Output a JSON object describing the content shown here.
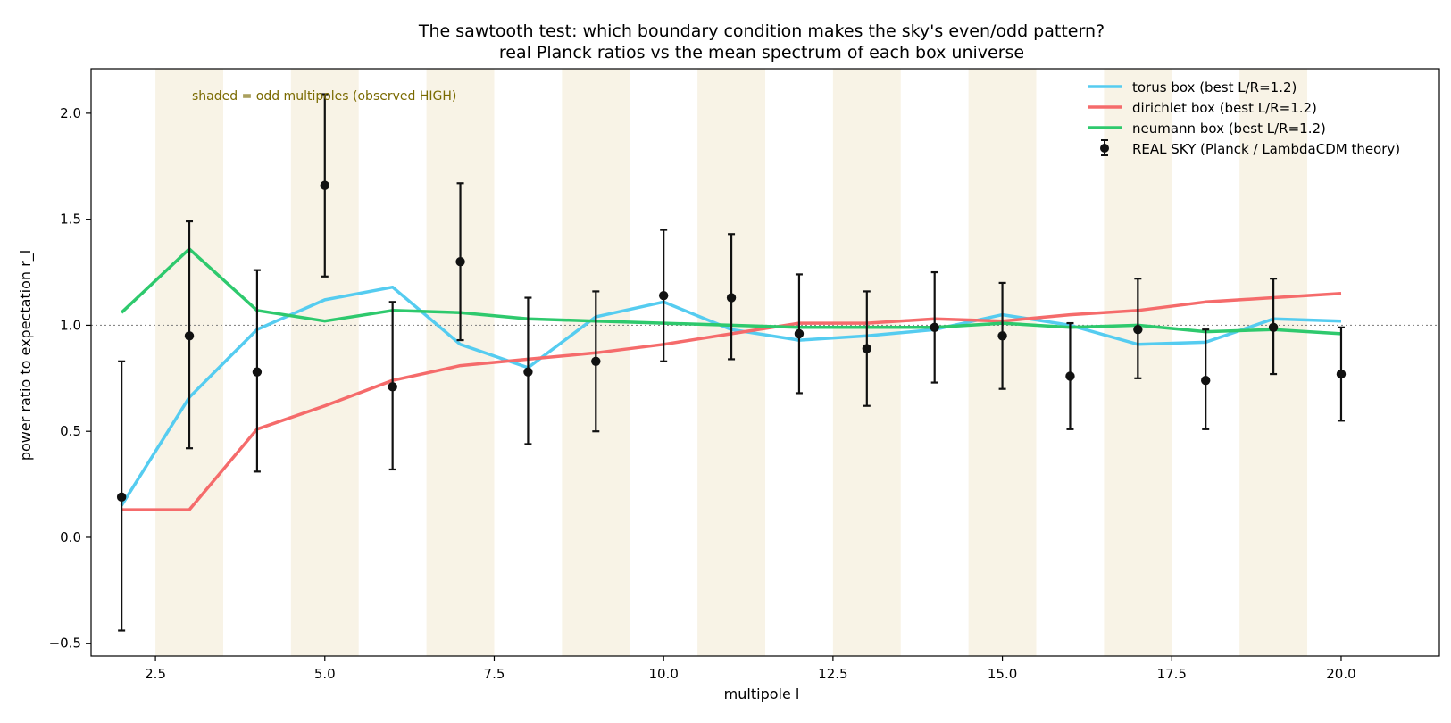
{
  "chart_data": {
    "type": "line",
    "title": "The sawtooth test: which boundary condition makes the sky's even/odd pattern?",
    "subtitle": "real Planck ratios vs the mean spectrum of each box universe",
    "xlabel": "multipole  l",
    "ylabel": "power ratio to expectation  r_l",
    "xlim": [
      1.55,
      21.45
    ],
    "ylim": [
      -0.56,
      2.21
    ],
    "xticks": [
      2.5,
      5.0,
      7.5,
      10.0,
      12.5,
      15.0,
      17.5,
      20.0
    ],
    "xtick_labels": [
      "2.5",
      "5.0",
      "7.5",
      "10.0",
      "12.5",
      "15.0",
      "17.5",
      "20.0"
    ],
    "yticks": [
      -0.5,
      0.0,
      0.5,
      1.0,
      1.5,
      2.0
    ],
    "ytick_labels": [
      "−0.5",
      "0.0",
      "0.5",
      "1.0",
      "1.5",
      "2.0"
    ],
    "reference_line": 1.0,
    "shaded_odd_multipoles": [
      3,
      5,
      7,
      9,
      11,
      13,
      15,
      17,
      19
    ],
    "annotation": "shaded = odd multipoles (observed HIGH)",
    "legend_position": "top-right",
    "grid": false,
    "x": [
      2,
      3,
      4,
      5,
      6,
      7,
      8,
      9,
      10,
      11,
      12,
      13,
      14,
      15,
      16,
      17,
      18,
      19,
      20
    ],
    "series": [
      {
        "name": "torus box  (best L/R=1.2)",
        "color": "#55ccf0",
        "values": [
          0.15,
          0.66,
          0.98,
          1.12,
          1.18,
          0.91,
          0.8,
          1.04,
          1.11,
          0.98,
          0.93,
          0.95,
          0.98,
          1.05,
          1.0,
          0.91,
          0.92,
          1.03,
          1.02
        ]
      },
      {
        "name": "dirichlet box  (best L/R=1.2)",
        "color": "#f56b6b",
        "values": [
          0.13,
          0.13,
          0.51,
          0.62,
          0.74,
          0.81,
          0.84,
          0.87,
          0.91,
          0.96,
          1.01,
          1.01,
          1.03,
          1.02,
          1.05,
          1.07,
          1.11,
          1.13,
          1.15
        ]
      },
      {
        "name": "neumann box  (best L/R=1.2)",
        "color": "#2ec96d",
        "values": [
          1.06,
          1.36,
          1.07,
          1.02,
          1.07,
          1.06,
          1.03,
          1.02,
          1.01,
          1.0,
          0.99,
          0.99,
          0.99,
          1.01,
          0.99,
          1.0,
          0.97,
          0.98,
          0.96
        ]
      }
    ],
    "observed": {
      "name": "REAL SKY (Planck / LambdaCDM theory)",
      "color": "#111111",
      "values": [
        0.19,
        0.95,
        0.78,
        1.66,
        0.71,
        1.3,
        0.78,
        0.83,
        1.14,
        1.13,
        0.96,
        0.89,
        0.99,
        0.95,
        0.76,
        0.98,
        0.74,
        0.99,
        0.77
      ],
      "err_low": [
        -0.44,
        0.42,
        0.31,
        1.23,
        0.32,
        0.93,
        0.44,
        0.5,
        0.83,
        0.84,
        0.68,
        0.62,
        0.73,
        0.7,
        0.51,
        0.75,
        0.51,
        0.77,
        0.55
      ],
      "err_high": [
        0.83,
        1.49,
        1.26,
        2.09,
        1.11,
        1.67,
        1.13,
        1.16,
        1.45,
        1.43,
        1.24,
        1.16,
        1.25,
        1.2,
        1.01,
        1.22,
        0.98,
        1.22,
        0.99
      ]
    },
    "colors": {
      "shade": "#f8f3e6",
      "annotation": "#7a6a00",
      "reference_line": "#888888"
    }
  }
}
